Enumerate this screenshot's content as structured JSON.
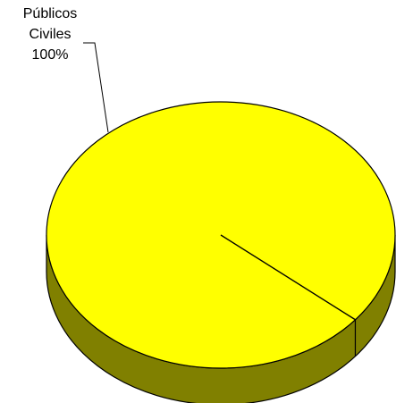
{
  "chart_data": {
    "type": "pie",
    "title": "",
    "slices": [
      {
        "label_lines": [
          "Públicos",
          "Civiles"
        ],
        "percent_label": "100%",
        "value": 100
      }
    ],
    "colors": {
      "top_fill": "#FFFF00",
      "side_fill": "#808000",
      "outline": "#000000"
    },
    "three_d": true,
    "legend": "none"
  }
}
